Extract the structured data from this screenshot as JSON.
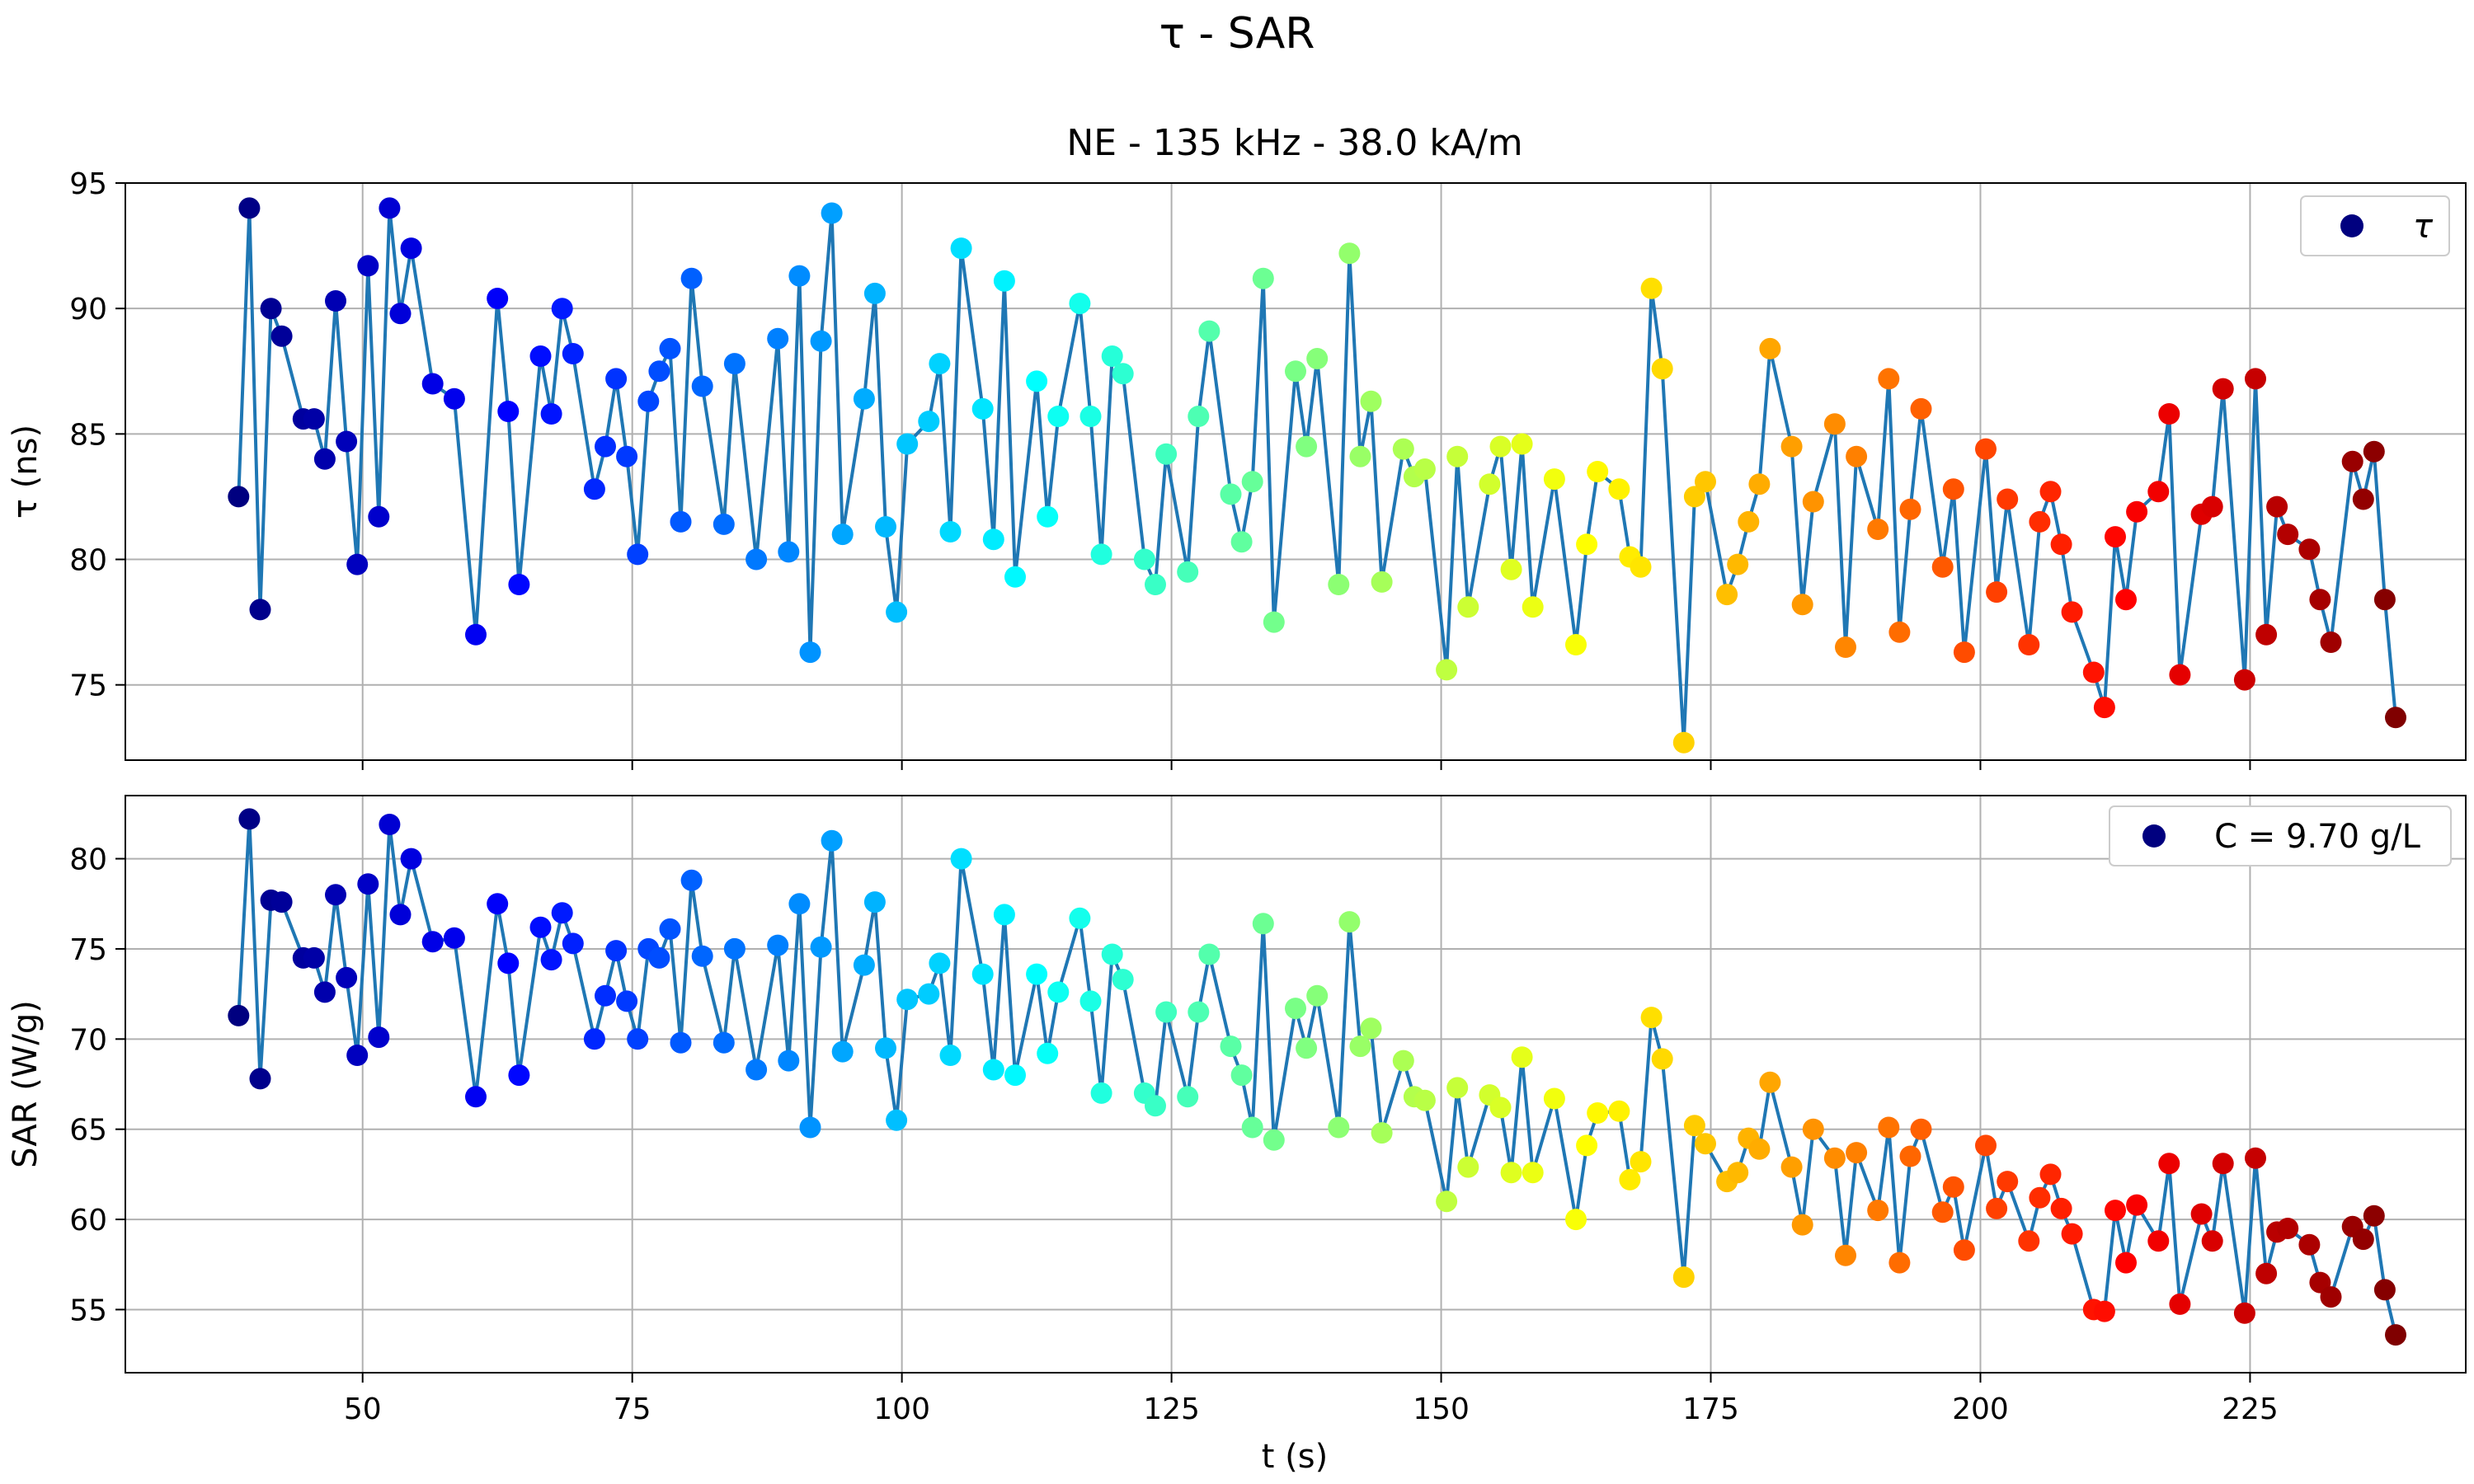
{
  "figure": {
    "suptitle": "τ - SAR",
    "subtitle": "NE - 135 kHz - 38.0 kA/m",
    "xlabel": "t (s)"
  },
  "chart_data": [
    {
      "type": "scatter",
      "panel": "top",
      "ylabel": "τ (ns)",
      "xlim": [
        28,
        245
      ],
      "ylim": [
        72,
        95
      ],
      "xticks": [
        50,
        75,
        100,
        125,
        150,
        175,
        200,
        225
      ],
      "yticks": [
        75,
        80,
        85,
        90,
        95
      ],
      "grid": true,
      "legend": {
        "position": "top-right",
        "entries": [
          "τ"
        ]
      },
      "line_color": "#1f77b4",
      "colormap": "jet",
      "marker": "circle",
      "series": [
        {
          "name": "τ",
          "x": [
            38.5,
            39.5,
            40.5,
            41.5,
            42.5,
            44.5,
            45.5,
            46.5,
            47.5,
            48.5,
            49.5,
            50.5,
            51.5,
            52.5,
            53.5,
            54.5,
            56.5,
            58.5,
            60.5,
            62.5,
            63.5,
            64.5,
            66.5,
            67.5,
            68.5,
            69.5,
            71.5,
            72.5,
            73.5,
            74.5,
            75.5,
            76.5,
            77.5,
            78.5,
            79.5,
            80.5,
            81.5,
            83.5,
            84.5,
            86.5,
            88.5,
            89.5,
            90.5,
            91.5,
            92.5,
            93.5,
            94.5,
            96.5,
            97.5,
            98.5,
            99.5,
            100.5,
            102.5,
            103.5,
            104.5,
            105.5,
            107.5,
            108.5,
            109.5,
            110.5,
            112.5,
            113.5,
            114.5,
            116.5,
            117.5,
            118.5,
            119.5,
            120.5,
            122.5,
            123.5,
            124.5,
            126.5,
            127.5,
            128.5,
            130.5,
            131.5,
            132.5,
            133.5,
            134.5,
            136.5,
            137.5,
            138.5,
            140.5,
            141.5,
            142.5,
            143.5,
            144.5,
            146.5,
            147.5,
            148.5,
            150.5,
            151.5,
            152.5,
            154.5,
            155.5,
            156.5,
            157.5,
            158.5,
            160.5,
            162.5,
            163.5,
            164.5,
            166.5,
            167.5,
            168.5,
            169.5,
            170.5,
            172.5,
            173.5,
            174.5,
            176.5,
            177.5,
            178.5,
            179.5,
            180.5,
            182.5,
            183.5,
            184.5,
            186.5,
            187.5,
            188.5,
            190.5,
            191.5,
            192.5,
            193.5,
            194.5,
            196.5,
            197.5,
            198.5,
            200.5,
            201.5,
            202.5,
            204.5,
            205.5,
            206.5,
            207.5,
            208.5,
            210.5,
            211.5,
            212.5,
            213.5,
            214.5,
            216.5,
            217.5,
            218.5,
            220.5,
            221.5,
            222.5,
            224.5,
            225.5,
            226.5,
            227.5,
            228.5,
            230.5,
            231.5,
            232.5,
            234.5,
            235.5,
            236.5,
            237.5,
            238.5
          ],
          "y": [
            82.5,
            94.0,
            78.0,
            90.0,
            88.9,
            85.6,
            85.6,
            84.0,
            90.3,
            84.7,
            79.8,
            91.7,
            81.7,
            94.0,
            89.8,
            92.4,
            87.0,
            86.4,
            77.0,
            90.4,
            85.9,
            79.0,
            88.1,
            85.8,
            90.0,
            88.2,
            82.8,
            84.5,
            87.2,
            84.1,
            80.2,
            86.3,
            87.5,
            88.4,
            81.5,
            91.2,
            86.9,
            81.4,
            87.8,
            80.0,
            88.8,
            80.3,
            91.3,
            76.3,
            88.7,
            93.8,
            81.0,
            86.4,
            90.6,
            81.3,
            77.9,
            84.6,
            85.5,
            87.8,
            81.1,
            92.4,
            86.0,
            80.8,
            91.1,
            79.3,
            87.1,
            81.7,
            85.7,
            90.2,
            85.7,
            80.2,
            88.1,
            87.4,
            80.0,
            79.0,
            84.2,
            79.5,
            85.7,
            89.1,
            82.6,
            80.7,
            83.1,
            91.2,
            77.5,
            87.5,
            84.5,
            88.0,
            79.0,
            92.2,
            84.1,
            86.3,
            79.1,
            84.4,
            83.3,
            83.6,
            75.6,
            84.1,
            78.1,
            83.0,
            84.5,
            79.6,
            84.6,
            78.1,
            83.2,
            76.6,
            80.6,
            83.5,
            82.8,
            80.1,
            79.7,
            90.8,
            87.6,
            72.7,
            82.5,
            83.1,
            78.6,
            79.8,
            81.5,
            83.0,
            88.4,
            84.5,
            78.2,
            82.3,
            85.4,
            76.5,
            84.1,
            81.2,
            87.2,
            77.1,
            82.0,
            86.0,
            79.7,
            82.8,
            76.3,
            84.4,
            78.7,
            82.4,
            76.6,
            81.5,
            82.7,
            80.6,
            77.9,
            75.5,
            74.1,
            80.9,
            78.4,
            81.9,
            82.7,
            85.8,
            75.4,
            81.8,
            82.1,
            86.8,
            75.2,
            87.2,
            77.0,
            82.1,
            81.0,
            80.4,
            78.4,
            76.7,
            83.9,
            82.4,
            84.3,
            78.4,
            73.7
          ]
        }
      ]
    },
    {
      "type": "scatter",
      "panel": "bottom",
      "ylabel": "SAR (W/g)",
      "xlim": [
        28,
        245
      ],
      "ylim": [
        51.5,
        83.5
      ],
      "xticks": [
        50,
        75,
        100,
        125,
        150,
        175,
        200,
        225
      ],
      "yticks": [
        55,
        60,
        65,
        70,
        75,
        80
      ],
      "grid": true,
      "legend": {
        "position": "top-right",
        "entries": [
          "C = 9.70 g/L"
        ]
      },
      "line_color": "#1f77b4",
      "colormap": "jet",
      "marker": "circle",
      "series": [
        {
          "name": "C = 9.70 g/L",
          "x": [
            38.5,
            39.5,
            40.5,
            41.5,
            42.5,
            44.5,
            45.5,
            46.5,
            47.5,
            48.5,
            49.5,
            50.5,
            51.5,
            52.5,
            53.5,
            54.5,
            56.5,
            58.5,
            60.5,
            62.5,
            63.5,
            64.5,
            66.5,
            67.5,
            68.5,
            69.5,
            71.5,
            72.5,
            73.5,
            74.5,
            75.5,
            76.5,
            77.5,
            78.5,
            79.5,
            80.5,
            81.5,
            83.5,
            84.5,
            86.5,
            88.5,
            89.5,
            90.5,
            91.5,
            92.5,
            93.5,
            94.5,
            96.5,
            97.5,
            98.5,
            99.5,
            100.5,
            102.5,
            103.5,
            104.5,
            105.5,
            107.5,
            108.5,
            109.5,
            110.5,
            112.5,
            113.5,
            114.5,
            116.5,
            117.5,
            118.5,
            119.5,
            120.5,
            122.5,
            123.5,
            124.5,
            126.5,
            127.5,
            128.5,
            130.5,
            131.5,
            132.5,
            133.5,
            134.5,
            136.5,
            137.5,
            138.5,
            140.5,
            141.5,
            142.5,
            143.5,
            144.5,
            146.5,
            147.5,
            148.5,
            150.5,
            151.5,
            152.5,
            154.5,
            155.5,
            156.5,
            157.5,
            158.5,
            160.5,
            162.5,
            163.5,
            164.5,
            166.5,
            167.5,
            168.5,
            169.5,
            170.5,
            172.5,
            173.5,
            174.5,
            176.5,
            177.5,
            178.5,
            179.5,
            180.5,
            182.5,
            183.5,
            184.5,
            186.5,
            187.5,
            188.5,
            190.5,
            191.5,
            192.5,
            193.5,
            194.5,
            196.5,
            197.5,
            198.5,
            200.5,
            201.5,
            202.5,
            204.5,
            205.5,
            206.5,
            207.5,
            208.5,
            210.5,
            211.5,
            212.5,
            213.5,
            214.5,
            216.5,
            217.5,
            218.5,
            220.5,
            221.5,
            222.5,
            224.5,
            225.5,
            226.5,
            227.5,
            228.5,
            230.5,
            231.5,
            232.5,
            234.5,
            235.5,
            236.5,
            237.5,
            238.5
          ],
          "y": [
            71.3,
            82.2,
            67.8,
            77.7,
            77.6,
            74.5,
            74.5,
            72.6,
            78.0,
            73.4,
            69.1,
            78.6,
            70.1,
            81.9,
            76.9,
            80.0,
            75.4,
            75.6,
            66.8,
            77.5,
            74.2,
            68.0,
            76.2,
            74.4,
            77.0,
            75.3,
            70.0,
            72.4,
            74.9,
            72.1,
            70.0,
            75.0,
            74.5,
            76.1,
            69.8,
            78.8,
            74.6,
            69.8,
            75.0,
            68.3,
            75.2,
            68.8,
            77.5,
            65.1,
            75.1,
            81.0,
            69.3,
            74.1,
            77.6,
            69.5,
            65.5,
            72.2,
            72.5,
            74.2,
            69.1,
            80.0,
            73.6,
            68.3,
            76.9,
            68.0,
            73.6,
            69.2,
            72.6,
            76.7,
            72.1,
            67.0,
            74.7,
            73.3,
            67.0,
            66.3,
            71.5,
            66.8,
            71.5,
            74.7,
            69.6,
            68.0,
            65.1,
            76.4,
            64.4,
            71.7,
            69.5,
            72.4,
            65.1,
            76.5,
            69.6,
            70.6,
            64.8,
            68.8,
            66.8,
            66.6,
            61.0,
            67.3,
            62.9,
            66.9,
            66.2,
            62.6,
            69.0,
            62.6,
            66.7,
            60.0,
            64.1,
            65.9,
            66.0,
            62.2,
            63.2,
            71.2,
            68.9,
            56.8,
            65.2,
            64.2,
            62.1,
            62.6,
            64.5,
            63.9,
            67.6,
            62.9,
            59.7,
            65.0,
            63.4,
            58.0,
            63.7,
            60.5,
            65.1,
            57.6,
            63.5,
            65.0,
            60.4,
            61.8,
            58.3,
            64.1,
            60.6,
            62.1,
            58.8,
            61.2,
            62.5,
            60.6,
            59.2,
            55.0,
            54.9,
            60.5,
            57.6,
            60.8,
            58.8,
            63.1,
            55.3,
            60.3,
            58.8,
            63.1,
            54.8,
            63.4,
            57.0,
            59.3,
            59.5,
            58.6,
            56.5,
            55.7,
            59.6,
            58.9,
            60.2,
            56.1,
            53.6
          ]
        }
      ]
    }
  ]
}
